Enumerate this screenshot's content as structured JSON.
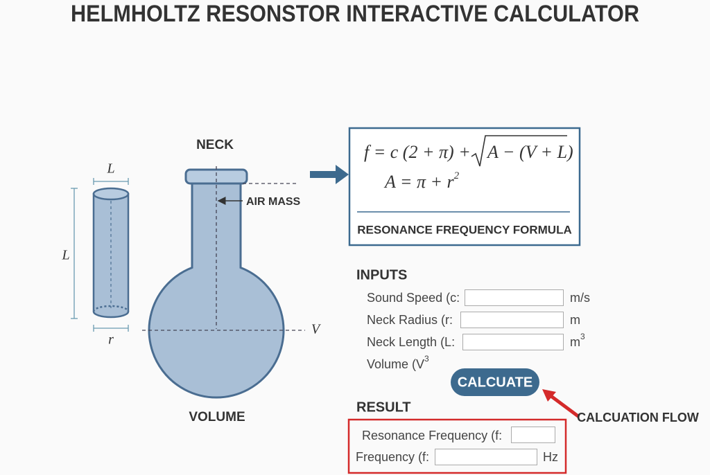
{
  "header": {
    "title": "HELMHOLTZ RESONSTOR INTERACTIVE CALCULATOR"
  },
  "diagram": {
    "neck_label": "NECK",
    "cylinder_length_top": "L",
    "cylinder_length_side": "L",
    "cylinder_radius": "r",
    "air_mass_label": "AIR MASS",
    "volume_symbol": "V",
    "volume_label": "VOLUME"
  },
  "formula": {
    "line1": "f = c (2 + π) +",
    "line1_root": "A − (V + L)",
    "line2": "A = π + r",
    "line2_sup": "2",
    "caption": "RESONANCE FREQUENCY FORMULA"
  },
  "inputs": {
    "title": "INPUTS",
    "fields": [
      {
        "label": "Sound Speed (c:",
        "unit": "m/s"
      },
      {
        "label": "Neck Radius (r:",
        "unit": "m"
      },
      {
        "label": "Neck Length (L:",
        "unit": "m",
        "unit_sup": "3"
      },
      {
        "label": "Volume (V",
        "label_sup": "3"
      }
    ]
  },
  "button": {
    "label": "CALCUATE"
  },
  "annotation": {
    "label": "CALCUATION FLOW"
  },
  "result": {
    "title": "RESULT",
    "fields": [
      {
        "label": "Resonance Frequency (f:"
      },
      {
        "label": "Frequency (f:",
        "unit": "Hz"
      }
    ]
  }
}
